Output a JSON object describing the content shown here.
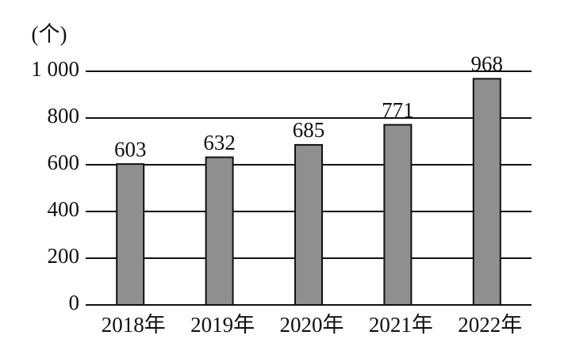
{
  "chart_data": {
    "type": "bar",
    "y_label": "(个)",
    "categories": [
      "2018年",
      "2019年",
      "2020年",
      "2021年",
      "2022年"
    ],
    "values": [
      603,
      632,
      685,
      771,
      968
    ],
    "color": "#8f8f8f",
    "ylim": [
      0,
      1000
    ],
    "yticks": [
      0,
      200,
      400,
      600,
      800,
      {
        "value": 1000,
        "label": "1 000"
      }
    ],
    "grid": true
  }
}
